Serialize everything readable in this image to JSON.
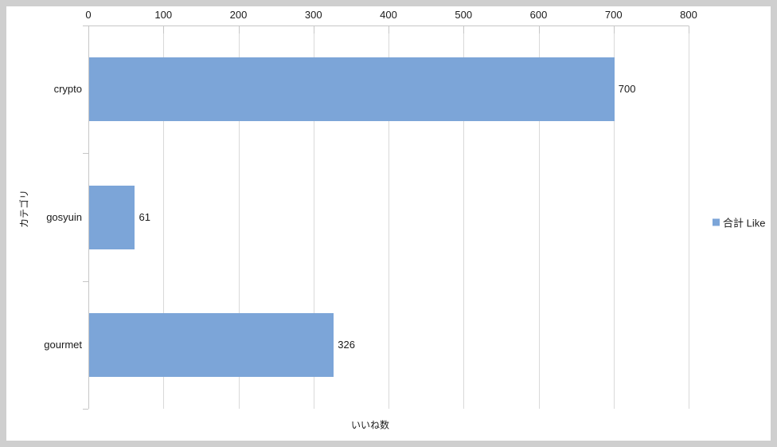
{
  "chart_data": {
    "type": "bar",
    "orientation": "horizontal",
    "categories": [
      "crypto",
      "gosyuin",
      "gourmet"
    ],
    "series": [
      {
        "name": "合計 Like",
        "values": [
          700,
          61,
          326
        ]
      }
    ],
    "data_labels": [
      "700",
      "61",
      "326"
    ],
    "xlabel": "いいね数",
    "ylabel": "カテゴリ",
    "xlim": [
      0,
      800
    ],
    "xticks": [
      "0",
      "100",
      "200",
      "300",
      "400",
      "500",
      "600",
      "700",
      "800"
    ],
    "xtick_values": [
      0,
      100,
      200,
      300,
      400,
      500,
      600,
      700,
      800
    ],
    "grid": true,
    "legend_position": "right-middle",
    "colors": {
      "bar": "#7CA5D8",
      "gridline": "#D9D9D9",
      "axis": "#C6C6C6",
      "text": "#1A1A1A",
      "frame_border": "#CFCFCF",
      "background": "#FFFFFF"
    }
  },
  "legend": {
    "entries": [
      {
        "label": "合計 Like",
        "swatch": "#7CA5D8"
      }
    ]
  }
}
